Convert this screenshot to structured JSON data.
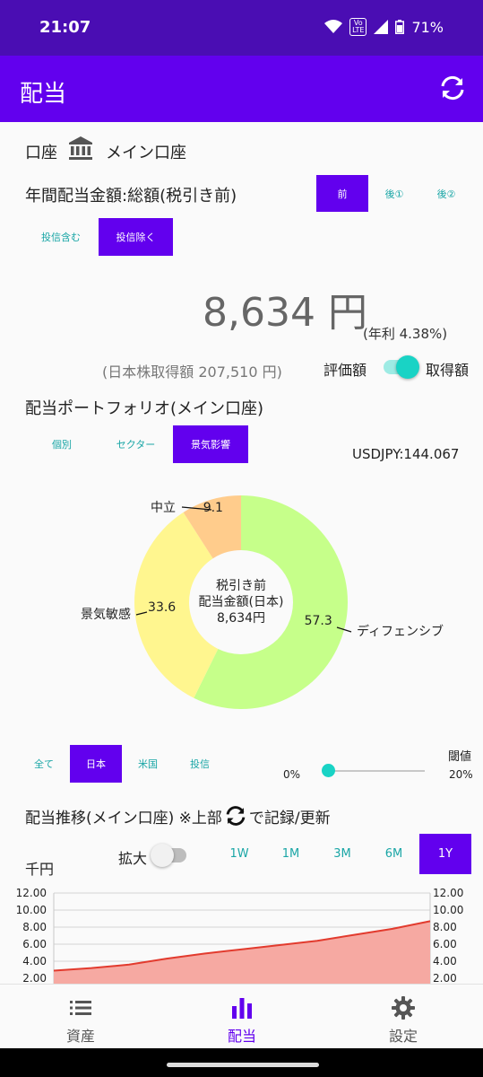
{
  "status": {
    "time": "21:07",
    "volte": "Vo\nLTE",
    "battery": "71%"
  },
  "appbar": {
    "title": "配当"
  },
  "account": {
    "label": "口座",
    "name": "メイン口座"
  },
  "annual": {
    "label": "年間配当金額:総額(税引き前)",
    "tax_tabs": [
      "前",
      "後①",
      "後②"
    ],
    "fund_tabs": [
      "投信含む",
      "投信除く"
    ],
    "amount": "8,634 円",
    "yield": "(年利 4.38%)",
    "acquisition": "(日本株取得額 207,510 円)",
    "toggle_left": "評価額",
    "toggle_right": "取得額"
  },
  "portfolio": {
    "title": "配当ポートフォリオ(メイン口座)",
    "tabs": [
      "個別",
      "セクター",
      "景気影響"
    ],
    "fx": "USDJPY:144.067",
    "center": [
      "税引き前",
      "配当金額(日本)",
      "8,634円"
    ]
  },
  "chart_data": [
    {
      "type": "pie",
      "title": "",
      "categories": [
        "ディフェンシブ",
        "景気敏感",
        "中立"
      ],
      "values": [
        57.3,
        33.6,
        9.1
      ],
      "colors": [
        "#c6ff8a",
        "#fff68f",
        "#ffcc8c"
      ]
    },
    {
      "type": "area",
      "title": "",
      "ylabel": "千円",
      "yticks": [
        "12.00",
        "10.00",
        "8.00",
        "6.00",
        "4.00",
        "2.00"
      ],
      "ylim": [
        2,
        12
      ],
      "x": [
        0,
        10,
        20,
        30,
        40,
        50,
        60,
        70,
        80,
        90,
        100
      ],
      "values": [
        2.9,
        3.2,
        3.6,
        4.3,
        4.9,
        5.4,
        5.9,
        6.4,
        7.1,
        7.8,
        8.7
      ],
      "line_color": "#e23b2e",
      "fill_color": "#f6a9a2"
    }
  ],
  "filters": {
    "region_tabs": [
      "全て",
      "日本",
      "米国",
      "投信"
    ],
    "threshold_label": "閾値",
    "slider_min": "0%",
    "slider_max": "20%",
    "slider_value_pct": 0
  },
  "trend": {
    "title": "配当推移(メイン口座) ※上部",
    "title_suffix": "で記録/更新",
    "zoom_label": "拡大",
    "range_tabs": [
      "1W",
      "1M",
      "3M",
      "6M",
      "1Y"
    ],
    "unit": "千円"
  },
  "nav": {
    "items": [
      "資産",
      "配当",
      "設定"
    ]
  },
  "colors": {
    "primary": "#6200ee",
    "status": "#4a0db3",
    "teal": "#1aa6a6",
    "toggle": "#19d3c5"
  }
}
